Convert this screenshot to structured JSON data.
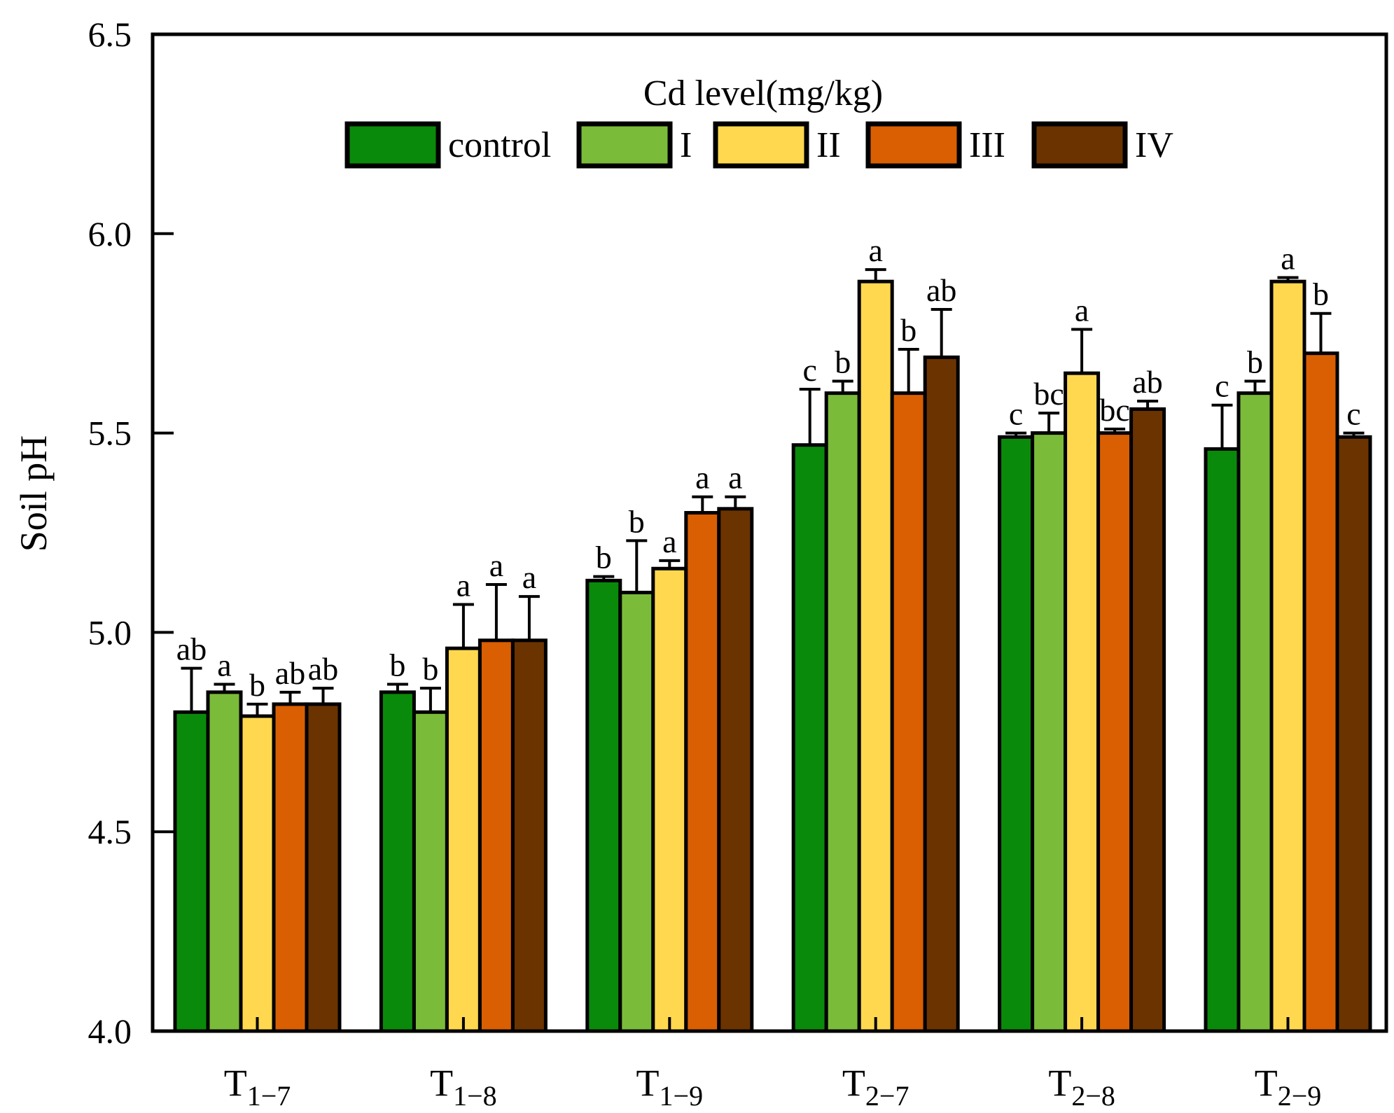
{
  "chart_data": {
    "type": "bar",
    "title": "",
    "ylabel": "Soil pH",
    "xlabel": "",
    "ylim": [
      4.0,
      6.5
    ],
    "yticks": [
      "4.0",
      "4.5",
      "5.0",
      "5.5",
      "6.0",
      "6.5"
    ],
    "categories": [
      {
        "base": "T",
        "sub": "1−7"
      },
      {
        "base": "T",
        "sub": "1−8"
      },
      {
        "base": "T",
        "sub": "1−9"
      },
      {
        "base": "T",
        "sub": "2−7"
      },
      {
        "base": "T",
        "sub": "2−8"
      },
      {
        "base": "T",
        "sub": "2−9"
      }
    ],
    "legend": {
      "title": "Cd level(mg/kg)",
      "placement": "top-center"
    },
    "series": [
      {
        "name": "control",
        "color": "#0a8a0a",
        "values": [
          4.8,
          4.85,
          5.13,
          5.47,
          5.49,
          5.46
        ],
        "errors": [
          0.11,
          0.02,
          0.01,
          0.14,
          0.01,
          0.11
        ],
        "letters": [
          "ab",
          "b",
          "b",
          "c",
          "c",
          "c"
        ]
      },
      {
        "name": "I",
        "color": "#7bbb3a",
        "values": [
          4.85,
          4.8,
          5.1,
          5.6,
          5.5,
          5.6
        ],
        "errors": [
          0.02,
          0.06,
          0.13,
          0.03,
          0.05,
          0.03
        ],
        "letters": [
          "a",
          "b",
          "b",
          "b",
          "bc",
          "b"
        ]
      },
      {
        "name": "II",
        "color": "#ffd84f",
        "values": [
          4.79,
          4.96,
          5.16,
          5.88,
          5.65,
          5.88
        ],
        "errors": [
          0.03,
          0.11,
          0.02,
          0.03,
          0.11,
          0.01
        ],
        "letters": [
          "b",
          "a",
          "a",
          "a",
          "a",
          "a"
        ]
      },
      {
        "name": "III",
        "color": "#d95f02",
        "values": [
          4.82,
          4.98,
          5.3,
          5.6,
          5.5,
          5.7
        ],
        "errors": [
          0.03,
          0.14,
          0.04,
          0.11,
          0.01,
          0.1
        ],
        "letters": [
          "ab",
          "a",
          "a",
          "b",
          "bc",
          "b"
        ]
      },
      {
        "name": "IV",
        "color": "#6b3300",
        "values": [
          4.82,
          4.98,
          5.31,
          5.69,
          5.56,
          5.49
        ],
        "errors": [
          0.04,
          0.11,
          0.03,
          0.12,
          0.02,
          0.01
        ],
        "letters": [
          "ab",
          "a",
          "a",
          "ab",
          "ab",
          "c"
        ]
      }
    ]
  }
}
